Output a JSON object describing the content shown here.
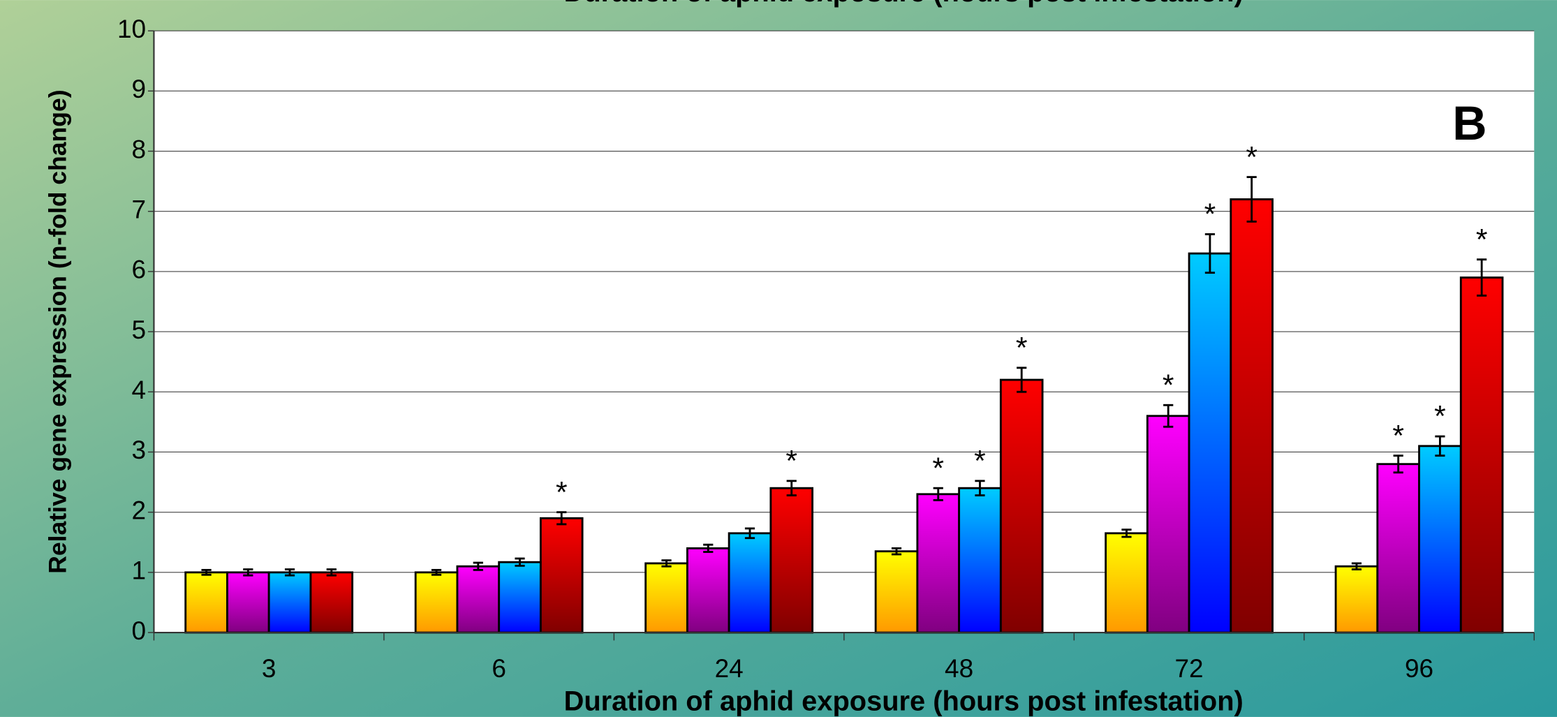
{
  "chart_data": {
    "type": "bar",
    "title": "Duration of aphid exposure (hours post infestation)",
    "x_label": "Duration of aphid exposure (hours post infestation)",
    "y_label": "Relative gene expression (n-fold change)",
    "annotation": "B",
    "categories": [
      "3",
      "6",
      "24",
      "48",
      "72",
      "96"
    ],
    "series": [
      {
        "color": "#ffff00",
        "gradient_to": "#ff9900",
        "values": [
          1.0,
          1.0,
          1.15,
          1.35,
          1.65,
          1.1
        ],
        "errors": [
          0.04,
          0.04,
          0.05,
          0.05,
          0.06,
          0.05
        ],
        "labels": [
          null,
          null,
          null,
          null,
          null,
          null
        ]
      },
      {
        "color": "#ff00ff",
        "gradient_to": "#800080",
        "values": [
          1.0,
          1.1,
          1.4,
          2.3,
          3.6,
          2.8
        ],
        "errors": [
          0.05,
          0.06,
          0.06,
          0.1,
          0.18,
          0.14
        ],
        "labels": [
          null,
          null,
          null,
          "*",
          "*",
          "*"
        ]
      },
      {
        "color": "#00ccff",
        "gradient_to": "#0000ff",
        "values": [
          1.0,
          1.17,
          1.65,
          2.4,
          6.3,
          3.1
        ],
        "errors": [
          0.05,
          0.06,
          0.08,
          0.12,
          0.32,
          0.16
        ],
        "labels": [
          null,
          null,
          null,
          "*",
          "*",
          "*"
        ]
      },
      {
        "color": "#ff0000",
        "gradient_to": "#800000",
        "values": [
          1.0,
          1.9,
          2.4,
          4.2,
          7.2,
          5.9
        ],
        "errors": [
          0.05,
          0.1,
          0.12,
          0.2,
          0.37,
          0.3
        ],
        "labels": [
          null,
          "*",
          "*",
          "*",
          "*",
          "*"
        ]
      }
    ],
    "ylim": [
      0,
      10
    ],
    "yticks": [
      0,
      1,
      2,
      3,
      4,
      5,
      6,
      7,
      8,
      9,
      10
    ],
    "grid": true
  }
}
